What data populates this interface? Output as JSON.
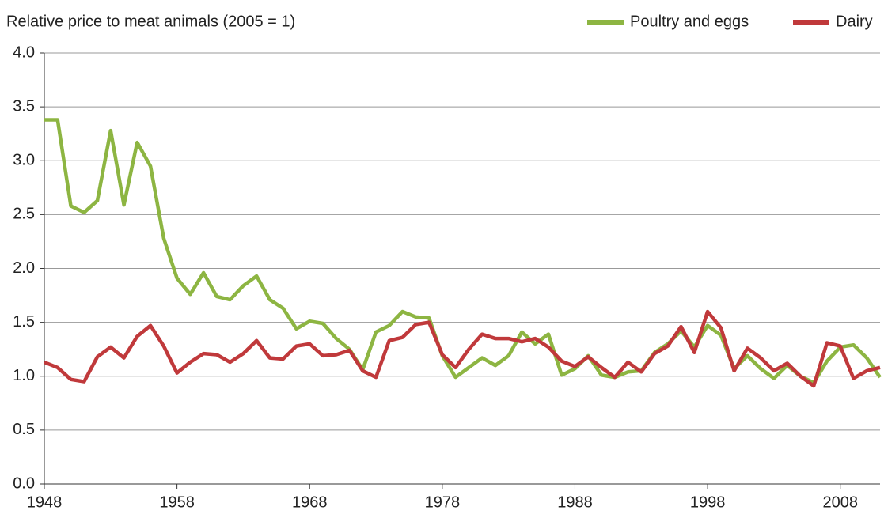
{
  "chart_data": {
    "type": "line",
    "ylabel": "Relative price to meat animals (2005 = 1)",
    "x": [
      1948,
      1949,
      1950,
      1951,
      1952,
      1953,
      1954,
      1955,
      1956,
      1957,
      1958,
      1959,
      1960,
      1961,
      1962,
      1963,
      1964,
      1965,
      1966,
      1967,
      1968,
      1969,
      1970,
      1971,
      1972,
      1973,
      1974,
      1975,
      1976,
      1977,
      1978,
      1979,
      1980,
      1981,
      1982,
      1983,
      1984,
      1985,
      1986,
      1987,
      1988,
      1989,
      1990,
      1991,
      1992,
      1993,
      1994,
      1995,
      1996,
      1997,
      1998,
      1999,
      2000,
      2001,
      2002,
      2003,
      2004,
      2005,
      2006,
      2007,
      2008,
      2009,
      2010,
      2011
    ],
    "series": [
      {
        "name": "Poultry and eggs",
        "color": "#8db542",
        "values": [
          3.38,
          3.38,
          2.58,
          2.52,
          2.63,
          3.28,
          2.59,
          3.17,
          2.95,
          2.28,
          1.91,
          1.76,
          1.96,
          1.74,
          1.71,
          1.84,
          1.93,
          1.71,
          1.63,
          1.44,
          1.51,
          1.49,
          1.35,
          1.25,
          1.06,
          1.41,
          1.47,
          1.6,
          1.55,
          1.54,
          1.19,
          0.99,
          1.08,
          1.17,
          1.1,
          1.19,
          1.41,
          1.3,
          1.39,
          1.01,
          1.07,
          1.19,
          1.01,
          0.99,
          1.04,
          1.05,
          1.22,
          1.3,
          1.42,
          1.27,
          1.47,
          1.38,
          1.07,
          1.19,
          1.07,
          0.98,
          1.1,
          1.0,
          0.94,
          1.14,
          1.27,
          1.29,
          1.17,
          0.99
        ]
      },
      {
        "name": "Dairy",
        "color": "#c0393b",
        "values": [
          1.13,
          1.08,
          0.97,
          0.95,
          1.18,
          1.27,
          1.17,
          1.37,
          1.47,
          1.28,
          1.03,
          1.13,
          1.21,
          1.2,
          1.13,
          1.21,
          1.33,
          1.17,
          1.16,
          1.28,
          1.3,
          1.19,
          1.2,
          1.24,
          1.05,
          0.99,
          1.33,
          1.36,
          1.48,
          1.5,
          1.2,
          1.08,
          1.25,
          1.39,
          1.35,
          1.35,
          1.32,
          1.35,
          1.27,
          1.14,
          1.09,
          1.18,
          1.08,
          0.99,
          1.13,
          1.04,
          1.21,
          1.28,
          1.46,
          1.22,
          1.6,
          1.45,
          1.05,
          1.26,
          1.17,
          1.05,
          1.12,
          1.0,
          0.91,
          1.31,
          1.28,
          0.98,
          1.05,
          1.08
        ]
      }
    ],
    "xlim": [
      1948,
      2011
    ],
    "xticks": [
      1948,
      1958,
      1968,
      1978,
      1988,
      1998,
      2008
    ],
    "ylim": [
      0,
      4
    ],
    "yticks": [
      {
        "value": 0,
        "label": "0.0"
      },
      0.5,
      {
        "value": 1,
        "label": "1.0"
      },
      1.5,
      {
        "value": 2,
        "label": "2.0"
      },
      2.5,
      {
        "value": 3,
        "label": "3.0"
      },
      3.5,
      {
        "value": 4,
        "label": "4.0"
      }
    ],
    "grid": true,
    "legend": "top-right"
  }
}
